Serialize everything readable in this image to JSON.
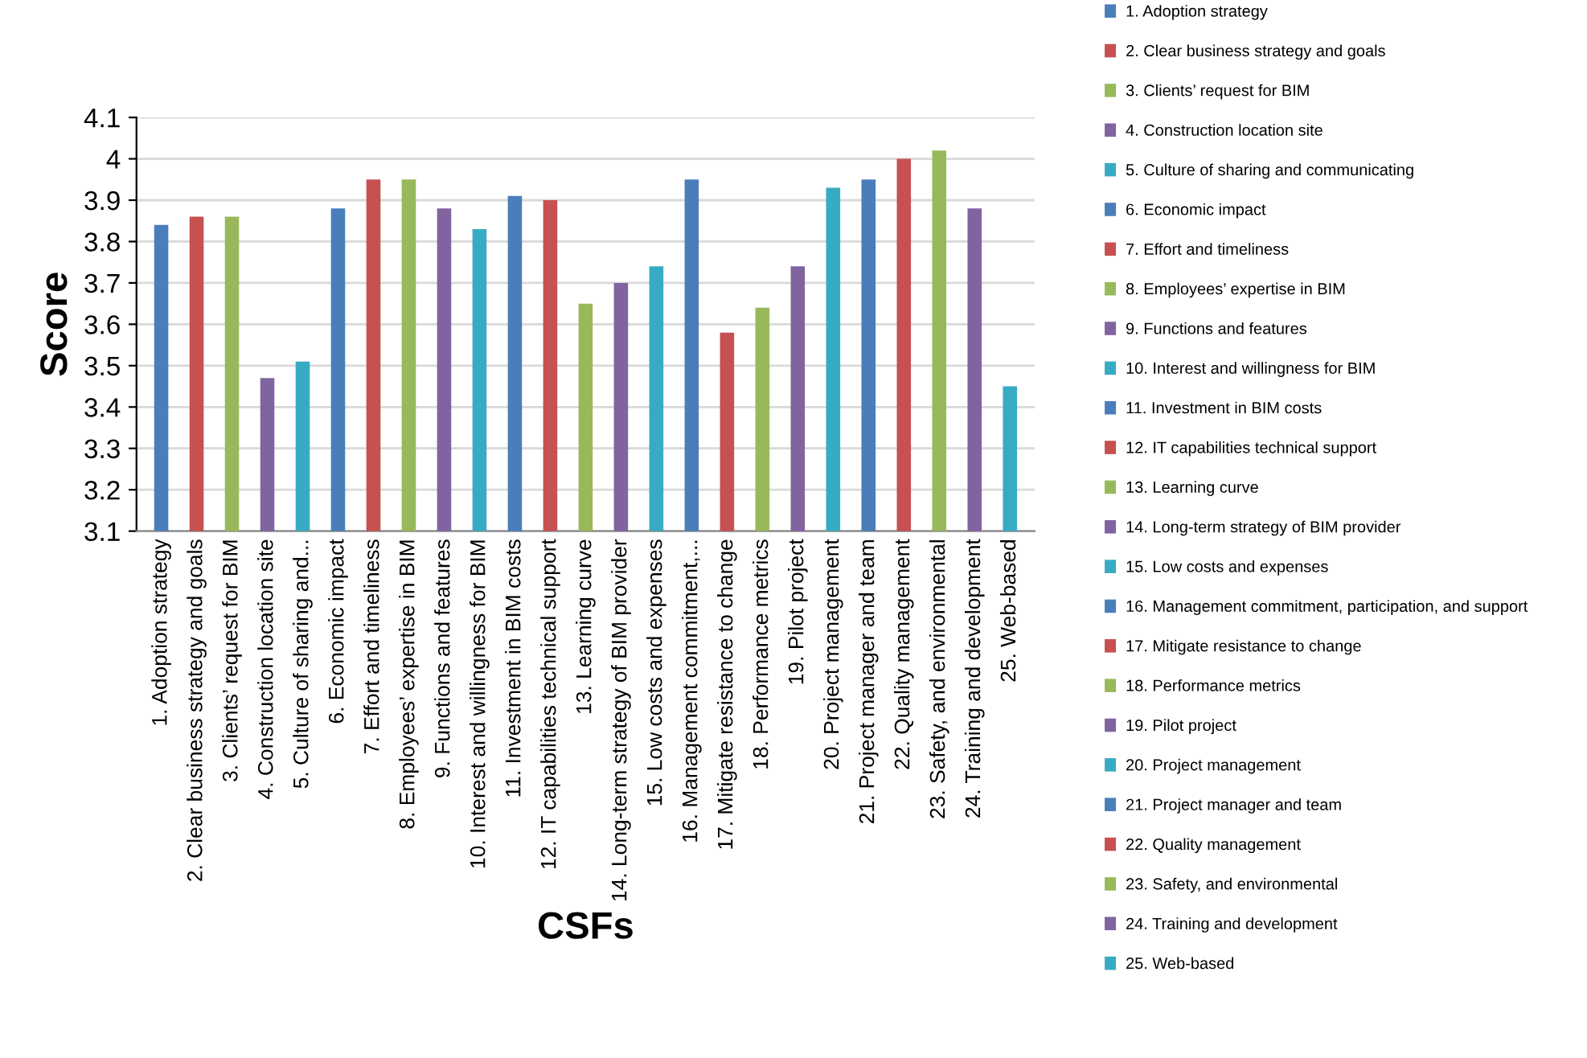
{
  "chart_data": {
    "type": "bar",
    "xlabel": "CSFs",
    "ylabel": "Score",
    "categories": [
      "1. Adoption strategy",
      "2. Clear business strategy and goals",
      "3. Clients’ request for BIM",
      "4. Construction location site",
      "5. Culture of sharing and...",
      "6. Economic impact",
      "7. Effort and timeliness",
      "8. Employees’ expertise in BIM",
      "9. Functions and features",
      "10. Interest and willingness for BIM",
      "11. Investment in BIM costs",
      "12. IT capabilities technical support",
      "13. Learning curve",
      "14. Long-term strategy of BIM provider",
      "15. Low costs and expenses",
      "16. Management commitment,...",
      "17. Mitigate resistance to change",
      "18. Performance metrics",
      "19. Pilot project",
      "20. Project management",
      "21. Project manager and team",
      "22. Quality management",
      "23. Safety, and environmental",
      "24. Training and development",
      "25. Web-based"
    ],
    "series": [
      {
        "name": "1. Adoption strategy",
        "color": "#4a7ebb",
        "values": [
          3.84,
          null,
          null,
          null,
          null,
          null,
          null,
          null,
          null,
          null,
          null,
          null,
          null,
          null,
          null,
          null,
          null,
          null,
          null,
          null,
          null,
          null,
          null,
          null,
          null
        ]
      },
      {
        "name": "2. Clear business strategy and goals",
        "color": "#c75050",
        "values": [
          null,
          3.86,
          null,
          null,
          null,
          null,
          null,
          null,
          null,
          null,
          null,
          null,
          null,
          null,
          null,
          null,
          null,
          null,
          null,
          null,
          null,
          null,
          null,
          null,
          null
        ]
      },
      {
        "name": "3. Clients’ request for BIM",
        "color": "#98b95a",
        "values": [
          null,
          null,
          3.86,
          null,
          null,
          null,
          null,
          null,
          null,
          null,
          null,
          null,
          null,
          null,
          null,
          null,
          null,
          null,
          null,
          null,
          null,
          null,
          null,
          null,
          null
        ]
      },
      {
        "name": "4. Construction location site",
        "color": "#8064a0",
        "values": [
          null,
          null,
          null,
          3.47,
          null,
          null,
          null,
          null,
          null,
          null,
          null,
          null,
          null,
          null,
          null,
          null,
          null,
          null,
          null,
          null,
          null,
          null,
          null,
          null,
          null
        ]
      },
      {
        "name": "5. Culture of sharing and communicating",
        "color": "#38abc4",
        "values": [
          null,
          null,
          null,
          null,
          3.51,
          null,
          null,
          null,
          null,
          null,
          null,
          null,
          null,
          null,
          null,
          null,
          null,
          null,
          null,
          null,
          null,
          null,
          null,
          null,
          null
        ]
      },
      {
        "name": "6. Economic impact",
        "color": "#4a7ebb",
        "values": [
          null,
          null,
          null,
          null,
          null,
          3.88,
          null,
          null,
          null,
          null,
          null,
          null,
          null,
          null,
          null,
          null,
          null,
          null,
          null,
          null,
          null,
          null,
          null,
          null,
          null
        ]
      },
      {
        "name": "7. Effort and timeliness",
        "color": "#c75050",
        "values": [
          null,
          null,
          null,
          null,
          null,
          null,
          3.95,
          null,
          null,
          null,
          null,
          null,
          null,
          null,
          null,
          null,
          null,
          null,
          null,
          null,
          null,
          null,
          null,
          null,
          null
        ]
      },
      {
        "name": "8. Employees’ expertise in BIM",
        "color": "#98b95a",
        "values": [
          null,
          null,
          null,
          null,
          null,
          null,
          null,
          3.95,
          null,
          null,
          null,
          null,
          null,
          null,
          null,
          null,
          null,
          null,
          null,
          null,
          null,
          null,
          null,
          null,
          null
        ]
      },
      {
        "name": "9. Functions and features",
        "color": "#8064a0",
        "values": [
          null,
          null,
          null,
          null,
          null,
          null,
          null,
          null,
          3.88,
          null,
          null,
          null,
          null,
          null,
          null,
          null,
          null,
          null,
          null,
          null,
          null,
          null,
          null,
          null,
          null
        ]
      },
      {
        "name": "10. Interest and willingness for BIM",
        "color": "#38abc4",
        "values": [
          null,
          null,
          null,
          null,
          null,
          null,
          null,
          null,
          null,
          3.83,
          null,
          null,
          null,
          null,
          null,
          null,
          null,
          null,
          null,
          null,
          null,
          null,
          null,
          null,
          null
        ]
      },
      {
        "name": "11. Investment in BIM costs",
        "color": "#4a7ebb",
        "values": [
          null,
          null,
          null,
          null,
          null,
          null,
          null,
          null,
          null,
          null,
          3.91,
          null,
          null,
          null,
          null,
          null,
          null,
          null,
          null,
          null,
          null,
          null,
          null,
          null,
          null
        ]
      },
      {
        "name": "12. IT capabilities technical support",
        "color": "#c75050",
        "values": [
          null,
          null,
          null,
          null,
          null,
          null,
          null,
          null,
          null,
          null,
          null,
          3.9,
          null,
          null,
          null,
          null,
          null,
          null,
          null,
          null,
          null,
          null,
          null,
          null,
          null
        ]
      },
      {
        "name": "13. Learning curve",
        "color": "#98b95a",
        "values": [
          null,
          null,
          null,
          null,
          null,
          null,
          null,
          null,
          null,
          null,
          null,
          null,
          3.65,
          null,
          null,
          null,
          null,
          null,
          null,
          null,
          null,
          null,
          null,
          null,
          null
        ]
      },
      {
        "name": "14. Long-term strategy of BIM provider",
        "color": "#8064a0",
        "values": [
          null,
          null,
          null,
          null,
          null,
          null,
          null,
          null,
          null,
          null,
          null,
          null,
          null,
          3.7,
          null,
          null,
          null,
          null,
          null,
          null,
          null,
          null,
          null,
          null,
          null
        ]
      },
      {
        "name": "15. Low costs and expenses",
        "color": "#38abc4",
        "values": [
          null,
          null,
          null,
          null,
          null,
          null,
          null,
          null,
          null,
          null,
          null,
          null,
          null,
          null,
          3.74,
          null,
          null,
          null,
          null,
          null,
          null,
          null,
          null,
          null,
          null
        ]
      },
      {
        "name": "16. Management commitment, participation, and support",
        "color": "#4a7ebb",
        "values": [
          null,
          null,
          null,
          null,
          null,
          null,
          null,
          null,
          null,
          null,
          null,
          null,
          null,
          null,
          null,
          3.95,
          null,
          null,
          null,
          null,
          null,
          null,
          null,
          null,
          null
        ]
      },
      {
        "name": "17. Mitigate resistance to change",
        "color": "#c75050",
        "values": [
          null,
          null,
          null,
          null,
          null,
          null,
          null,
          null,
          null,
          null,
          null,
          null,
          null,
          null,
          null,
          null,
          3.58,
          null,
          null,
          null,
          null,
          null,
          null,
          null,
          null
        ]
      },
      {
        "name": "18. Performance metrics",
        "color": "#98b95a",
        "values": [
          null,
          null,
          null,
          null,
          null,
          null,
          null,
          null,
          null,
          null,
          null,
          null,
          null,
          null,
          null,
          null,
          null,
          3.64,
          null,
          null,
          null,
          null,
          null,
          null,
          null
        ]
      },
      {
        "name": "19. Pilot project",
        "color": "#8064a0",
        "values": [
          null,
          null,
          null,
          null,
          null,
          null,
          null,
          null,
          null,
          null,
          null,
          null,
          null,
          null,
          null,
          null,
          null,
          null,
          3.74,
          null,
          null,
          null,
          null,
          null,
          null
        ]
      },
      {
        "name": "20. Project management",
        "color": "#38abc4",
        "values": [
          null,
          null,
          null,
          null,
          null,
          null,
          null,
          null,
          null,
          null,
          null,
          null,
          null,
          null,
          null,
          null,
          null,
          null,
          null,
          3.93,
          null,
          null,
          null,
          null,
          null
        ]
      },
      {
        "name": "21. Project manager and team",
        "color": "#4a7ebb",
        "values": [
          null,
          null,
          null,
          null,
          null,
          null,
          null,
          null,
          null,
          null,
          null,
          null,
          null,
          null,
          null,
          null,
          null,
          null,
          null,
          null,
          3.95,
          null,
          null,
          null,
          null
        ]
      },
      {
        "name": "22. Quality management",
        "color": "#c75050",
        "values": [
          null,
          null,
          null,
          null,
          null,
          null,
          null,
          null,
          null,
          null,
          null,
          null,
          null,
          null,
          null,
          null,
          null,
          null,
          null,
          null,
          null,
          4.0,
          null,
          null,
          null
        ]
      },
      {
        "name": "23. Safety, and environmental",
        "color": "#98b95a",
        "values": [
          null,
          null,
          null,
          null,
          null,
          null,
          null,
          null,
          null,
          null,
          null,
          null,
          null,
          null,
          null,
          null,
          null,
          null,
          null,
          null,
          null,
          null,
          4.02,
          null,
          null
        ]
      },
      {
        "name": "24. Training and development",
        "color": "#8064a0",
        "values": [
          null,
          null,
          null,
          null,
          null,
          null,
          null,
          null,
          null,
          null,
          null,
          null,
          null,
          null,
          null,
          null,
          null,
          null,
          null,
          null,
          null,
          null,
          null,
          3.88,
          null
        ]
      },
      {
        "name": "25. Web-based",
        "color": "#38abc4",
        "values": [
          null,
          null,
          null,
          null,
          null,
          null,
          null,
          null,
          null,
          null,
          null,
          null,
          null,
          null,
          null,
          null,
          null,
          null,
          null,
          null,
          null,
          null,
          null,
          null,
          3.45
        ]
      }
    ],
    "ylim": [
      3.1,
      4.1
    ],
    "yticks": [
      {
        "value": 3.1,
        "label": "3.1"
      },
      {
        "value": 3.2,
        "label": "3.2"
      },
      {
        "value": 3.3,
        "label": "3.3"
      },
      {
        "value": 3.4,
        "label": "3.4"
      },
      {
        "value": 3.5,
        "label": "3.5"
      },
      {
        "value": 3.6,
        "label": "3.6"
      },
      {
        "value": 3.7,
        "label": "3.7"
      },
      {
        "value": 3.8,
        "label": "3.8"
      },
      {
        "value": 3.9,
        "label": "3.9"
      },
      4,
      {
        "value": 4.1,
        "label": "4.1"
      }
    ],
    "grid": "y",
    "legend": "right"
  }
}
